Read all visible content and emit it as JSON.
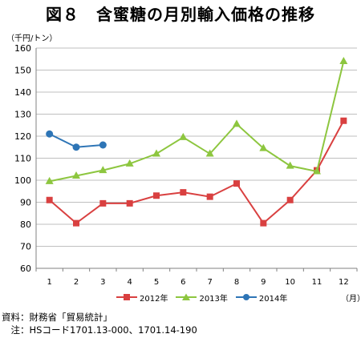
{
  "title": "図８　含蜜糖の月別輸入価格の推移",
  "y_unit": "（千円/トン）",
  "x_unit": "（月）",
  "notes": [
    "資料：財務省「貿易統計」",
    "　注：HSコード1701.13-000、1701.14-190"
  ],
  "chart_data": {
    "type": "line",
    "title": "図８　含蜜糖の月別輸入価格の推移",
    "xlabel": "（月）",
    "ylabel": "（千円/トン）",
    "categories": [
      "1",
      "2",
      "3",
      "4",
      "5",
      "6",
      "7",
      "8",
      "9",
      "10",
      "11",
      "12"
    ],
    "ylim": [
      60,
      160
    ],
    "yticks": [
      60,
      70,
      80,
      90,
      100,
      110,
      120,
      130,
      140,
      150,
      160
    ],
    "grid": true,
    "legend_position": "bottom",
    "series": [
      {
        "name": "2012年",
        "color": "#d94040",
        "marker": "square",
        "values": [
          91,
          80.5,
          89.5,
          89.5,
          93,
          94.5,
          92.5,
          98.5,
          80.5,
          91,
          104.5,
          127
        ]
      },
      {
        "name": "2013年",
        "color": "#8dc63f",
        "marker": "triangle",
        "values": [
          99.5,
          102,
          104.5,
          107.5,
          112,
          119.5,
          112,
          125.5,
          114.5,
          106.5,
          104,
          154
        ]
      },
      {
        "name": "2014年",
        "color": "#2e75b6",
        "marker": "circle",
        "values": [
          121,
          115,
          116,
          null,
          null,
          null,
          null,
          null,
          null,
          null,
          null,
          null
        ]
      }
    ]
  }
}
